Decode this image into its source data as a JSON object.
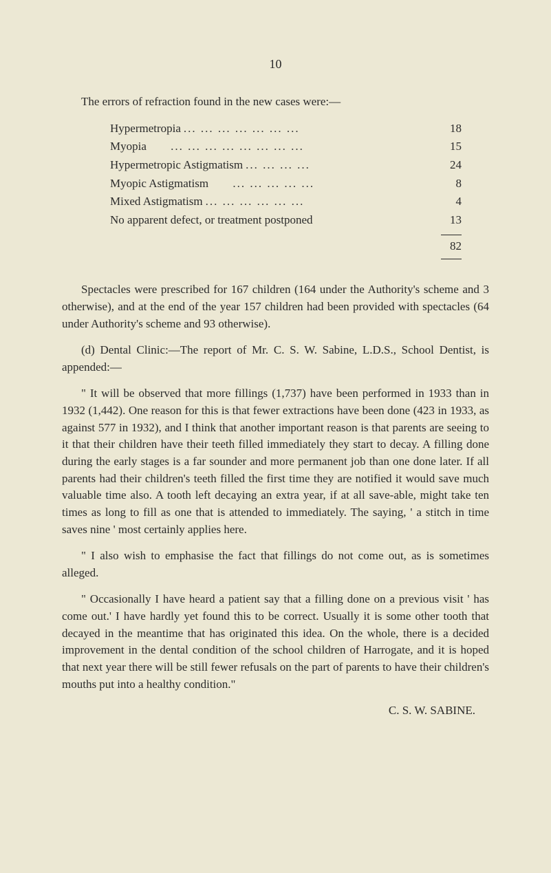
{
  "page_number": "10",
  "intro": "The errors of refraction found in the new cases were:—",
  "refraction_table": {
    "rows": [
      {
        "label": "Hypermetropia",
        "value": "18"
      },
      {
        "label": "Myopia",
        "value": "15"
      },
      {
        "label": "Hypermetropic Astigmatism",
        "value": "24"
      },
      {
        "label": "Myopic Astigmatism",
        "value": "8"
      },
      {
        "label": "Mixed Astigmatism",
        "value": "4"
      },
      {
        "label": "No apparent defect, or treatment postponed",
        "value": "13"
      }
    ],
    "total": "82"
  },
  "para_spectacles": "Spectacles were prescribed for 167 children (164 under the Authority's scheme and 3 otherwise), and at the end of the year 157 children had been provided with spectacles (64 under Authority's scheme and 93 otherwise).",
  "para_dental_intro": "(d) Dental Clinic:—The report of Mr. C. S. W. Sabine, L.D.S., School Dentist, is appended:—",
  "para_fillings": "\" It will be observed that more fillings (1,737) have been performed in 1933 than in 1932 (1,442). One reason for this is that fewer extractions have been done (423 in 1933, as against 577 in 1932), and I think that another important reason is that parents are seeing to it that their children have their teeth filled immediately they start to decay. A filling done during the early stages is a far sounder and more permanent job than one done later. If all parents had their children's teeth filled the first time they are notified it would save much valuable time also. A tooth left decaying an extra year, if at all save-able, might take ten times as long to fill as one that is attended to immediately. The saying, ' a stitch in time saves nine ' most certainly applies here.",
  "para_emphasise": "\" I also wish to emphasise the fact that fillings do not come out, as is sometimes alleged.",
  "para_occasionally": "\" Occasionally I have heard a patient say that a filling done on a previous visit ' has come out.' I have hardly yet found this to be correct. Usually it is some other tooth that decayed in the meantime that has originated this idea. On the whole, there is a decided improvement in the dental condition of the school children of Harrogate, and it is hoped that next year there will be still fewer refusals on the part of parents to have their children's mouths put into a healthy condition.\"",
  "signature": "C. S. W. SABINE."
}
